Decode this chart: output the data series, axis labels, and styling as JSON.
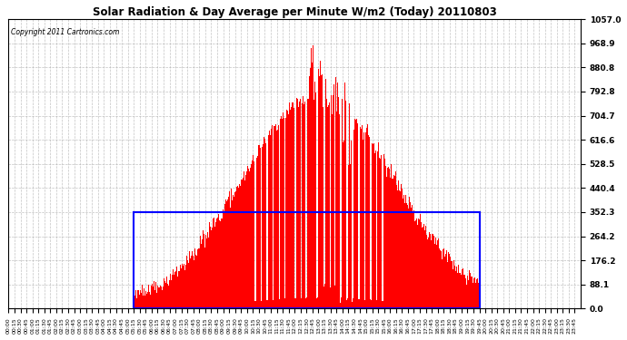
{
  "title": "Solar Radiation & Day Average per Minute W/m2 (Today) 20110803",
  "copyright": "Copyright 2011 Cartronics.com",
  "bg_color": "#ffffff",
  "plot_bg_color": "#ffffff",
  "bar_color": "#ff0000",
  "rect_color": "#0000ff",
  "grid_color": "#aaaaaa",
  "title_color": "#000000",
  "ymin": 0.0,
  "ymax": 1057.0,
  "ytick_labels": [
    "0.0",
    "88.1",
    "176.2",
    "264.2",
    "352.3",
    "440.4",
    "528.5",
    "616.6",
    "704.7",
    "792.8",
    "880.8",
    "968.9",
    "1057.0"
  ],
  "ytick_values": [
    0.0,
    88.1,
    176.2,
    264.2,
    352.3,
    440.4,
    528.5,
    616.6,
    704.7,
    792.8,
    880.8,
    968.9,
    1057.0
  ],
  "day_avg": 352.3,
  "sunrise_min": 315,
  "sunset_min": 1185,
  "total_minutes": 1440,
  "figwidth": 6.9,
  "figheight": 3.75,
  "dpi": 100
}
